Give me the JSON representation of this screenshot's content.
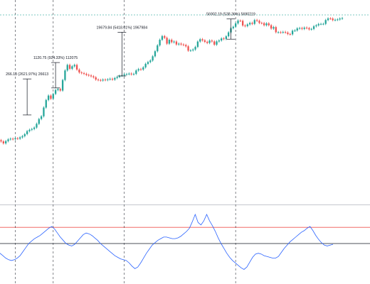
{
  "chart_data": {
    "type": "candlestick",
    "title": "",
    "xlabel": "",
    "ylabel": "",
    "scale": "log",
    "grid": false,
    "colors": {
      "up": "#26a69a",
      "down": "#ef5350",
      "dashed_price_line": "#26a69a",
      "oscillator_line": "#2962ff",
      "upper_band": "#ef5350",
      "middle_band": "#131722",
      "cycle_lines": "#131722",
      "annotation_lines": "#131722"
    },
    "candles": [
      {
        "o": 1.0,
        "c": 0.9
      },
      {
        "o": 0.9,
        "c": 0.75
      },
      {
        "o": 0.75,
        "c": 0.92
      },
      {
        "o": 0.92,
        "c": 1.08
      },
      {
        "o": 1.08,
        "c": 1.15
      },
      {
        "o": 1.15,
        "c": 1.1
      },
      {
        "o": 1.1,
        "c": 1.2
      },
      {
        "o": 1.2,
        "c": 1.15
      },
      {
        "o": 1.15,
        "c": 1.3
      },
      {
        "o": 1.3,
        "c": 1.45
      },
      {
        "o": 1.45,
        "c": 1.75
      },
      {
        "o": 1.75,
        "c": 2.3
      },
      {
        "o": 2.3,
        "c": 2.6
      },
      {
        "o": 2.6,
        "c": 2.8
      },
      {
        "o": 2.8,
        "c": 3.2
      },
      {
        "o": 3.2,
        "c": 4.5
      },
      {
        "o": 4.5,
        "c": 7.0
      },
      {
        "o": 7.0,
        "c": 9.0
      },
      {
        "o": 9.0,
        "c": 20.0
      },
      {
        "o": 20.0,
        "c": 40.0
      },
      {
        "o": 40.0,
        "c": 60.0
      },
      {
        "o": 60.0,
        "c": 45.0
      },
      {
        "o": 45.0,
        "c": 70.0
      },
      {
        "o": 70.0,
        "c": 100.0
      },
      {
        "o": 100.0,
        "c": 110.0
      },
      {
        "o": 110.0,
        "c": 95.0
      },
      {
        "o": 95.0,
        "c": 250.0
      },
      {
        "o": 250.0,
        "c": 600.0
      },
      {
        "o": 600.0,
        "c": 1000.0
      },
      {
        "o": 1000.0,
        "c": 700.0
      },
      {
        "o": 700.0,
        "c": 880.0
      },
      {
        "o": 880.0,
        "c": 1000.0
      },
      {
        "o": 1000.0,
        "c": 650.0
      },
      {
        "o": 650.0,
        "c": 500.0
      },
      {
        "o": 500.0,
        "c": 470.0
      },
      {
        "o": 470.0,
        "c": 440.0
      },
      {
        "o": 440.0,
        "c": 400.0
      },
      {
        "o": 400.0,
        "c": 380.0
      },
      {
        "o": 380.0,
        "c": 350.0
      },
      {
        "o": 350.0,
        "c": 320.0
      },
      {
        "o": 320.0,
        "c": 260.0
      },
      {
        "o": 260.0,
        "c": 250.0
      },
      {
        "o": 250.0,
        "c": 240.0
      },
      {
        "o": 240.0,
        "c": 260.0
      },
      {
        "o": 260.0,
        "c": 250.0
      },
      {
        "o": 250.0,
        "c": 265.0
      },
      {
        "o": 265.0,
        "c": 280.0
      },
      {
        "o": 280.0,
        "c": 260.0
      },
      {
        "o": 260.0,
        "c": 300.0
      },
      {
        "o": 300.0,
        "c": 330.0
      },
      {
        "o": 330.0,
        "c": 370.0
      },
      {
        "o": 370.0,
        "c": 380.0
      },
      {
        "o": 380.0,
        "c": 420.0
      },
      {
        "o": 420.0,
        "c": 430.0
      },
      {
        "o": 430.0,
        "c": 450.0
      },
      {
        "o": 450.0,
        "c": 420.0
      },
      {
        "o": 420.0,
        "c": 440.0
      },
      {
        "o": 440.0,
        "c": 600.0
      },
      {
        "o": 600.0,
        "c": 680.0
      },
      {
        "o": 680.0,
        "c": 650.0
      },
      {
        "o": 650.0,
        "c": 800.0
      },
      {
        "o": 800.0,
        "c": 1100.0
      },
      {
        "o": 1100.0,
        "c": 1300.0
      },
      {
        "o": 1300.0,
        "c": 1500.0
      },
      {
        "o": 1500.0,
        "c": 2200.0
      },
      {
        "o": 2200.0,
        "c": 3500.0
      },
      {
        "o": 3500.0,
        "c": 6000.0
      },
      {
        "o": 6000.0,
        "c": 10000.0
      },
      {
        "o": 10000.0,
        "c": 14000.0
      },
      {
        "o": 14000.0,
        "c": 12000.0
      },
      {
        "o": 12000.0,
        "c": 7000.0
      },
      {
        "o": 7000.0,
        "c": 10000.0
      },
      {
        "o": 10000.0,
        "c": 8000.0
      },
      {
        "o": 8000.0,
        "c": 8500.0
      },
      {
        "o": 8500.0,
        "c": 6500.0
      },
      {
        "o": 6500.0,
        "c": 7000.0
      },
      {
        "o": 7000.0,
        "c": 6500.0
      },
      {
        "o": 6500.0,
        "c": 6200.0
      },
      {
        "o": 6200.0,
        "c": 5500.0
      },
      {
        "o": 5500.0,
        "c": 3700.0
      },
      {
        "o": 3700.0,
        "c": 3800.0
      },
      {
        "o": 3800.0,
        "c": 4100.0
      },
      {
        "o": 4100.0,
        "c": 5200.0
      },
      {
        "o": 5200.0,
        "c": 8500.0
      },
      {
        "o": 8500.0,
        "c": 10500.0
      },
      {
        "o": 10500.0,
        "c": 9500.0
      },
      {
        "o": 9500.0,
        "c": 8300.0
      },
      {
        "o": 8300.0,
        "c": 7500.0
      },
      {
        "o": 7500.0,
        "c": 9300.0
      },
      {
        "o": 9300.0,
        "c": 8600.0
      },
      {
        "o": 8600.0,
        "c": 6400.0
      },
      {
        "o": 6400.0,
        "c": 8600.0
      },
      {
        "o": 8600.0,
        "c": 9400.0
      },
      {
        "o": 9400.0,
        "c": 11300.0
      },
      {
        "o": 11300.0,
        "c": 10800.0
      },
      {
        "o": 10800.0,
        "c": 13800.0
      },
      {
        "o": 13800.0,
        "c": 19700.0
      },
      {
        "o": 19700.0,
        "c": 29000.0
      },
      {
        "o": 29000.0,
        "c": 33000.0
      },
      {
        "o": 33000.0,
        "c": 45000.0
      },
      {
        "o": 45000.0,
        "c": 58000.0
      },
      {
        "o": 58000.0,
        "c": 57000.0
      },
      {
        "o": 57000.0,
        "c": 37000.0
      },
      {
        "o": 37000.0,
        "c": 35000.0
      },
      {
        "o": 35000.0,
        "c": 41000.0
      },
      {
        "o": 41000.0,
        "c": 47000.0
      },
      {
        "o": 47000.0,
        "c": 43000.0
      },
      {
        "o": 43000.0,
        "c": 61000.0
      },
      {
        "o": 61000.0,
        "c": 57000.0
      },
      {
        "o": 57000.0,
        "c": 47000.0
      },
      {
        "o": 47000.0,
        "c": 46000.0
      },
      {
        "o": 46000.0,
        "c": 38000.0
      },
      {
        "o": 38000.0,
        "c": 45000.0
      },
      {
        "o": 45000.0,
        "c": 38000.0
      },
      {
        "o": 38000.0,
        "c": 28000.0
      },
      {
        "o": 28000.0,
        "c": 32000.0
      },
      {
        "o": 32000.0,
        "c": 20000.0
      },
      {
        "o": 20000.0,
        "c": 20000.0
      },
      {
        "o": 20000.0,
        "c": 19500.0
      },
      {
        "o": 19500.0,
        "c": 20500.0
      },
      {
        "o": 20500.0,
        "c": 19400.0
      },
      {
        "o": 19400.0,
        "c": 17000.0
      },
      {
        "o": 17000.0,
        "c": 16500.0
      },
      {
        "o": 16500.0,
        "c": 23000.0
      },
      {
        "o": 23000.0,
        "c": 23500.0
      },
      {
        "o": 23500.0,
        "c": 28500.0
      },
      {
        "o": 28500.0,
        "c": 29300.0
      },
      {
        "o": 29300.0,
        "c": 27200.0
      },
      {
        "o": 27200.0,
        "c": 30500.0
      },
      {
        "o": 30500.0,
        "c": 29200.0
      },
      {
        "o": 29200.0,
        "c": 26000.0
      },
      {
        "o": 26000.0,
        "c": 27000.0
      },
      {
        "o": 27000.0,
        "c": 34500.0
      },
      {
        "o": 34500.0,
        "c": 37700.0
      },
      {
        "o": 37700.0,
        "c": 42500.0
      },
      {
        "o": 42500.0,
        "c": 42600.0
      },
      {
        "o": 42600.0,
        "c": 43000.0
      },
      {
        "o": 43000.0,
        "c": 61000.0
      },
      {
        "o": 61000.0,
        "c": 71000.0
      },
      {
        "o": 71000.0,
        "c": 70000.0
      },
      {
        "o": 70000.0,
        "c": 60600.0
      },
      {
        "o": 60600.0,
        "c": 62700.0
      },
      {
        "o": 62700.0,
        "c": 64600.0
      },
      {
        "o": 64600.0,
        "c": 70000.0
      },
      {
        "o": 70000.0,
        "c": 73000.0
      }
    ],
    "dashed_price_level": 98000.0,
    "cycle_marker_candles": [
      6,
      22,
      52,
      99
    ],
    "annotations": [
      {
        "label": "266.13 (2621.97%) 26613",
        "from": 10.15,
        "to": 276.28,
        "at_candle": 11
      },
      {
        "label": "1120.75 (924.33%) 112075",
        "from": 121.25,
        "to": 1242.0,
        "at_candle": 23
      },
      {
        "label": "19679.84 (5418.01%) 1967984",
        "from": 363.23,
        "to": 20043.07,
        "at_candle": 51
      },
      {
        "label": "56902.19 (538.36%) 5690219",
        "from": 10569.7,
        "to": 67471.9,
        "at_candle": 97
      }
    ],
    "oscillator": {
      "upper_band": 70,
      "middle_band": 50,
      "values": [
        38,
        35,
        32,
        30,
        29,
        30,
        32,
        35,
        40,
        45,
        50,
        53,
        56,
        58,
        60,
        63,
        66,
        69,
        71,
        68,
        63,
        58,
        54,
        50,
        48,
        47,
        49,
        53,
        57,
        61,
        63,
        62,
        60,
        57,
        54,
        50,
        47,
        44,
        41,
        38,
        35,
        33,
        31,
        30,
        29,
        26,
        22,
        19,
        21,
        26,
        32,
        38,
        43,
        48,
        51,
        54,
        56,
        58,
        58,
        57,
        56,
        56,
        57,
        59,
        62,
        65,
        69,
        77,
        86,
        76,
        73,
        78,
        86,
        78,
        72,
        65,
        57,
        50,
        44,
        38,
        33,
        29,
        26,
        23,
        20,
        18,
        21,
        27,
        33,
        37,
        38,
        37,
        35,
        34,
        33,
        32,
        32,
        34,
        39,
        44,
        48,
        52,
        55,
        58,
        61,
        64,
        66,
        69,
        71,
        66,
        60,
        55,
        51,
        48,
        47,
        48,
        49
      ]
    }
  }
}
